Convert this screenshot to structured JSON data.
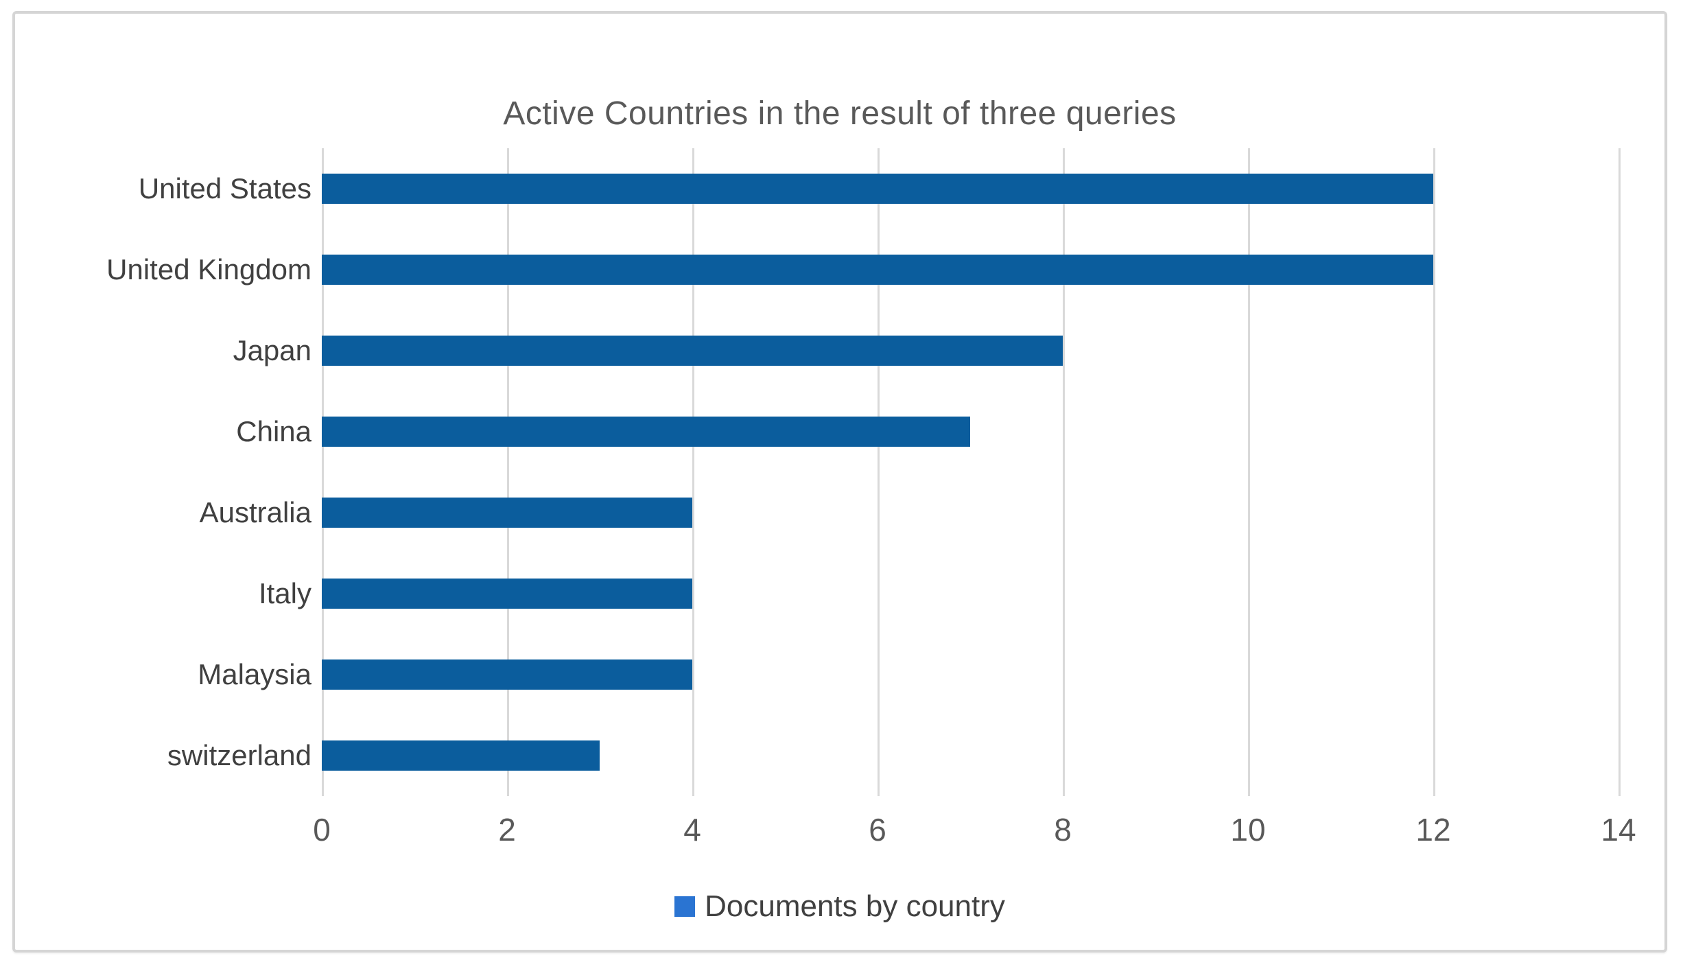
{
  "chart_data": {
    "type": "bar",
    "orientation": "horizontal",
    "title": "Active Countries in the result of three queries",
    "categories": [
      "United States",
      "United Kingdom",
      "Japan",
      "China",
      "Australia",
      "Italy",
      "Malaysia",
      "switzerland"
    ],
    "values": [
      12,
      12,
      8,
      7,
      4,
      4,
      4,
      3
    ],
    "series_name": "Documents by country",
    "xlabel": "",
    "ylabel": "",
    "xlim": [
      0,
      14
    ],
    "x_ticks": [
      0,
      2,
      4,
      6,
      8,
      10,
      12,
      14
    ],
    "grid": true,
    "legend_position": "bottom",
    "colors": {
      "bar": "#0b5d9d",
      "legend_marker": "#2a74d2",
      "gridline": "#d9d9d9",
      "title_text": "#595959",
      "tick_text": "#595959",
      "category_text": "#404040",
      "frame_border": "#d5d5d5"
    }
  }
}
